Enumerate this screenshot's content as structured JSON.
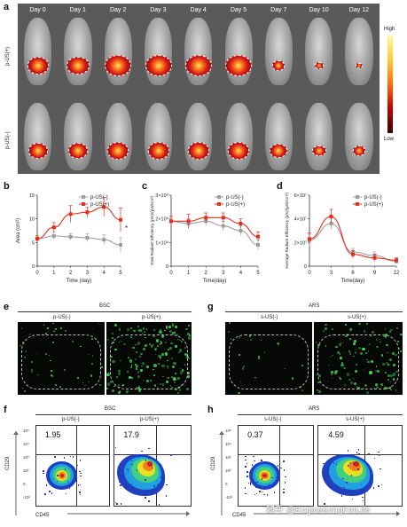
{
  "panels": {
    "a": "a",
    "b": "b",
    "c": "c",
    "d": "d",
    "e": "e",
    "f": "f",
    "g": "g",
    "h": "h"
  },
  "panel_a": {
    "days": [
      "Day 0",
      "Day 1",
      "Day 2",
      "Day 3",
      "Day 4",
      "Day 5",
      "Day 7",
      "Day 10",
      "Day 12"
    ],
    "rows": [
      "p-US(+)",
      "p-US(-)"
    ],
    "colorbar_high": "High",
    "colorbar_low": "Low",
    "colors": {
      "bg": "#5a5a5a",
      "tumor_hot": "#d11a1a",
      "tumor_core": "#ffeb6b"
    }
  },
  "chart_data": [
    {
      "type": "line",
      "panel": "b",
      "ylabel": "Area (cm²)",
      "xlabel": "Time (day)",
      "x": [
        0,
        1,
        2,
        3,
        4,
        5
      ],
      "xticks": [
        "0",
        "1",
        "2",
        "3",
        "4",
        "5"
      ],
      "yticks": [
        "0",
        "5",
        "10",
        "15"
      ],
      "ylim": [
        0,
        15
      ],
      "annotation": "*",
      "series": [
        {
          "name": "p-US(-)",
          "color": "#9e9e9e",
          "values": [
            5.8,
            6.4,
            6.2,
            6.0,
            5.6,
            4.5
          ],
          "err": [
            0.6,
            0.8,
            0.7,
            0.8,
            1.0,
            1.5
          ]
        },
        {
          "name": "p-US(+)",
          "color": "#e0301e",
          "values": [
            5.8,
            8.2,
            11.0,
            11.4,
            12.5,
            9.8
          ],
          "err": [
            0.6,
            1.0,
            1.8,
            1.0,
            2.0,
            2.5
          ]
        }
      ]
    },
    {
      "type": "line",
      "panel": "c",
      "ylabel": "Total Radiant Efficiency (p/s)/(μW/cm²)",
      "xlabel": "Time(day)",
      "x": [
        0,
        1,
        2,
        3,
        4,
        5
      ],
      "xticks": [
        "0",
        "1",
        "2",
        "3",
        "4",
        "5"
      ],
      "yticks": [
        "0",
        "1×10⁹",
        "2×10⁹",
        "3×10⁹"
      ],
      "ylim": [
        0,
        3
      ],
      "series": [
        {
          "name": "p-US(-)",
          "color": "#9e9e9e",
          "values": [
            1.9,
            1.8,
            1.9,
            1.7,
            1.5,
            0.9
          ],
          "err": [
            0.2,
            0.2,
            0.2,
            0.2,
            0.2,
            0.2
          ]
        },
        {
          "name": "p-US(+)",
          "color": "#e0301e",
          "values": [
            1.9,
            1.9,
            2.05,
            2.05,
            1.8,
            1.25
          ],
          "err": [
            0.2,
            0.3,
            0.2,
            0.2,
            0.2,
            0.2
          ]
        }
      ]
    },
    {
      "type": "line",
      "panel": "d",
      "ylabel": "Average Radiant Efficiency (p/s)/(μW/cm²)",
      "xlabel": "Time(day)",
      "x": [
        0,
        3,
        6,
        9,
        12
      ],
      "xticks": [
        "0",
        "3",
        "6",
        "9",
        "12"
      ],
      "yticks": [
        "0",
        "2×10⁷",
        "4×10⁷",
        "6×10⁷"
      ],
      "ylim": [
        0,
        6
      ],
      "series": [
        {
          "name": "p-US(-)",
          "color": "#9e9e9e",
          "values": [
            2.2,
            3.6,
            1.2,
            0.9,
            0.4
          ],
          "err": [
            0.5,
            0.5,
            0.3,
            0.3,
            0.2
          ]
        },
        {
          "name": "p-US(+)",
          "color": "#e0301e",
          "values": [
            2.3,
            4.2,
            1.0,
            0.7,
            0.5
          ],
          "err": [
            0.5,
            0.6,
            0.3,
            0.3,
            0.2
          ]
        }
      ]
    }
  ],
  "panel_e": {
    "title": "BSC",
    "left": "p-US(-)",
    "right": "p-US(+)"
  },
  "panel_g": {
    "title": "ARS",
    "left": "s-US(-)",
    "right": "s-US(+)"
  },
  "panel_f": {
    "title": "BSC",
    "left": "p-US(-)",
    "right": "p-US(+)",
    "left_pct": "1.95",
    "right_pct": "17.9",
    "xaxis": "CD45",
    "yaxis": "CD29"
  },
  "panel_h": {
    "title": "ARS",
    "left": "s-US(-)",
    "right": "s-US(+)",
    "left_pct": "0.37",
    "right_pct": "4.59",
    "xaxis": "CD45",
    "yaxis": "CD29"
  },
  "flow_ticks": [
    "10⁵",
    "10⁴",
    "10³",
    "10²",
    "0",
    "-10²"
  ],
  "watermark": "知乎 @EngineeringForLife"
}
